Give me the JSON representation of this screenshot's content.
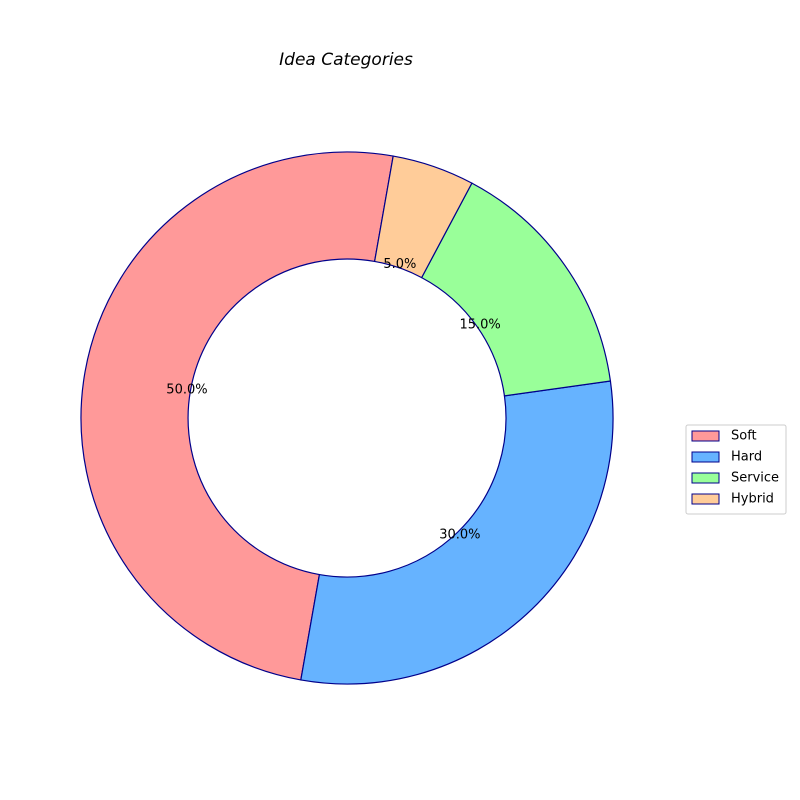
{
  "chart_data": {
    "type": "pie",
    "variant": "donut",
    "title": "Idea Categories",
    "categories": [
      "Soft",
      "Hard",
      "Service",
      "Hybrid"
    ],
    "values": [
      50.0,
      30.0,
      15.0,
      5.0
    ],
    "labels": [
      "50.0%",
      "30.0%",
      "15.0%",
      "5.0%"
    ],
    "colors": [
      "#ff9999",
      "#66b3ff",
      "#99ff99",
      "#ffcc99"
    ],
    "edge_color": "#00008b",
    "legend": {
      "position": "right",
      "entries": [
        "Soft",
        "Hard",
        "Service",
        "Hybrid"
      ]
    }
  }
}
